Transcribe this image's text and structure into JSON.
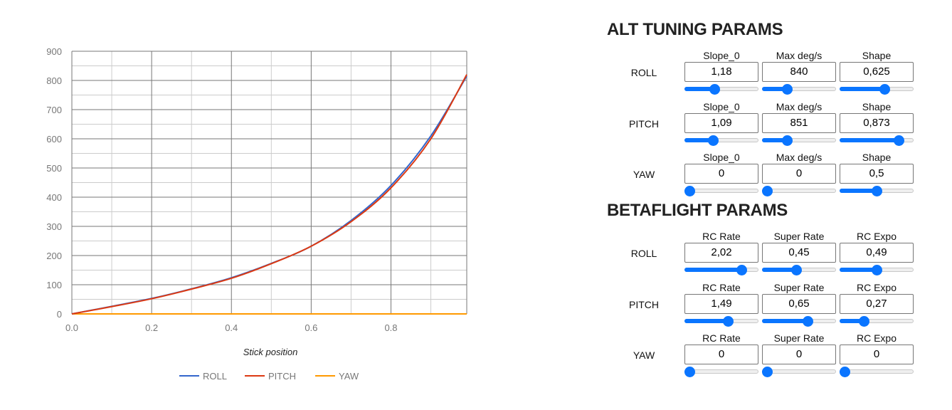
{
  "chart_data": {
    "type": "line",
    "title": "",
    "xlabel": "Stick position",
    "ylabel": "",
    "xlim": [
      0,
      0.99
    ],
    "ylim": [
      0,
      900
    ],
    "x_ticks": [
      "0.0",
      "0.2",
      "0.4",
      "0.6",
      "0.8"
    ],
    "y_ticks": [
      "0",
      "100",
      "200",
      "300",
      "400",
      "500",
      "600",
      "700",
      "800",
      "900"
    ],
    "grid": true,
    "legend_position": "bottom",
    "x": [
      0,
      0.1,
      0.2,
      0.3,
      0.4,
      0.5,
      0.6,
      0.7,
      0.8,
      0.9,
      0.99
    ],
    "series": [
      {
        "name": "ROLL",
        "color": "#3366cc",
        "values": [
          0,
          26,
          53,
          86,
          124,
          173,
          232,
          320,
          440,
          610,
          815
        ]
      },
      {
        "name": "PITCH",
        "color": "#dc3912",
        "values": [
          0,
          25,
          52,
          85,
          122,
          172,
          232,
          316,
          432,
          600,
          820
        ]
      },
      {
        "name": "YAW",
        "color": "#ff9900",
        "values": [
          0,
          0,
          0,
          0,
          0,
          0,
          0,
          0,
          0,
          0,
          0
        ]
      }
    ]
  },
  "colors": {
    "accent": "#0a75ff"
  },
  "alt": {
    "title": "ALT TUNING PARAMS",
    "rows": [
      {
        "axis": "ROLL",
        "params": [
          {
            "label": "Slope_0",
            "value": "1,18",
            "level": 0.39
          },
          {
            "label": "Max deg/s",
            "value": "840",
            "level": 0.31
          },
          {
            "label": "Shape",
            "value": "0,625",
            "level": 0.62
          }
        ]
      },
      {
        "axis": "PITCH",
        "params": [
          {
            "label": "Slope_0",
            "value": "1,09",
            "level": 0.37
          },
          {
            "label": "Max deg/s",
            "value": "851",
            "level": 0.31
          },
          {
            "label": "Shape",
            "value": "0,873",
            "level": 0.84
          }
        ]
      },
      {
        "axis": "YAW",
        "params": [
          {
            "label": "Slope_0",
            "value": "0",
            "level": 0
          },
          {
            "label": "Max deg/s",
            "value": "0",
            "level": 0
          },
          {
            "label": "Shape",
            "value": "0,5",
            "level": 0.5
          }
        ]
      }
    ]
  },
  "betaflight": {
    "title": "BETAFLIGHT PARAMS",
    "rows": [
      {
        "axis": "ROLL",
        "params": [
          {
            "label": "RC Rate",
            "value": "2,02",
            "level": 0.81
          },
          {
            "label": "Super Rate",
            "value": "0,45",
            "level": 0.46
          },
          {
            "label": "RC Expo",
            "value": "0,49",
            "level": 0.5
          }
        ]
      },
      {
        "axis": "PITCH",
        "params": [
          {
            "label": "RC Rate",
            "value": "1,49",
            "level": 0.6
          },
          {
            "label": "Super Rate",
            "value": "0,65",
            "level": 0.63
          },
          {
            "label": "RC Expo",
            "value": "0,27",
            "level": 0.3
          }
        ]
      },
      {
        "axis": "YAW",
        "params": [
          {
            "label": "RC Rate",
            "value": "0",
            "level": 0
          },
          {
            "label": "Super Rate",
            "value": "0",
            "level": 0
          },
          {
            "label": "RC Expo",
            "value": "0",
            "level": 0
          }
        ]
      }
    ]
  }
}
